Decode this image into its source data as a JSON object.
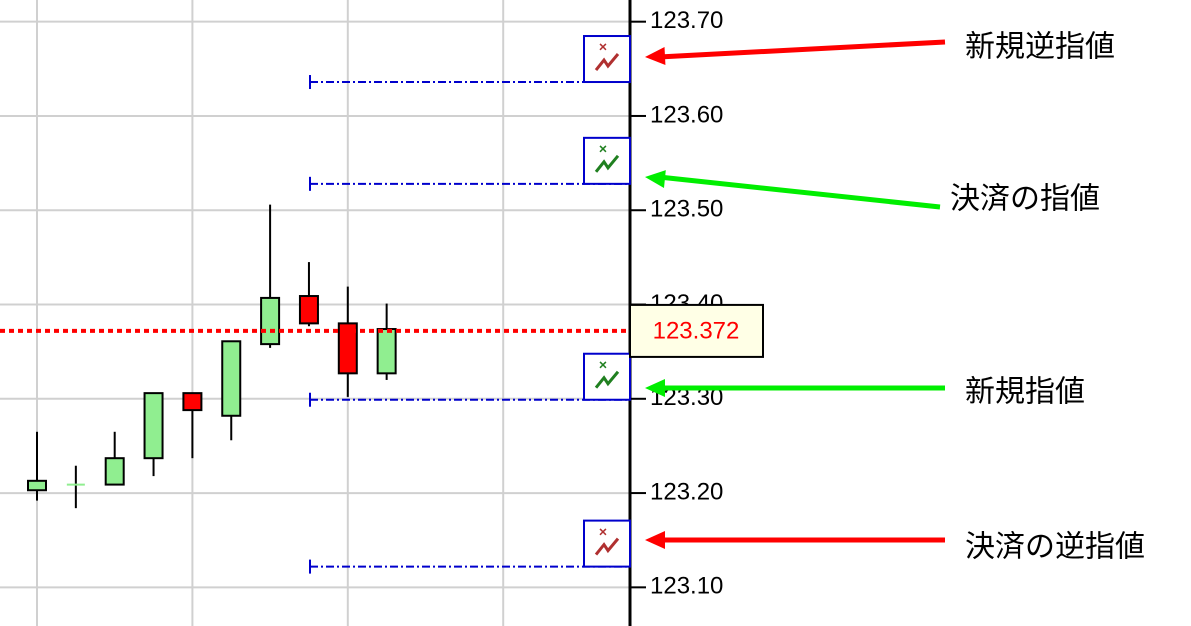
{
  "chart_data": {
    "type": "candlestick",
    "series": [
      {
        "open": [
          123.203,
          123.209,
          123.209,
          123.237,
          123.306,
          123.282,
          123.358,
          123.409,
          123.38,
          123.327
        ],
        "high": [
          123.265,
          123.229,
          123.265,
          123.306,
          123.306,
          123.361,
          123.506,
          123.445,
          123.419,
          123.401
        ],
        "low": [
          123.192,
          123.184,
          123.209,
          123.218,
          123.237,
          123.256,
          123.354,
          123.377,
          123.302,
          123.32
        ],
        "close": [
          123.213,
          123.209,
          123.237,
          123.306,
          123.288,
          123.361,
          123.407,
          123.38,
          123.327,
          123.374
        ]
      }
    ],
    "up_color": "#90ee90",
    "down_color": "#ff0000",
    "ylim": [
      123.059,
      123.723
    ],
    "yticks": [
      {
        "value": 123.1,
        "label": "123.10"
      },
      {
        "value": 123.2,
        "label": "123.20"
      },
      {
        "value": 123.3,
        "label": "123.30"
      },
      {
        "value": 123.4,
        "label": "123.40"
      },
      {
        "value": 123.5,
        "label": "123.50"
      },
      {
        "value": 123.6,
        "label": "123.60"
      },
      {
        "value": 123.7,
        "label": "123.70"
      }
    ],
    "grid": true,
    "current_price": 123.372,
    "current_price_color": "#ff0000",
    "orders": [
      {
        "label": "新規逆指値",
        "price": 123.636,
        "color": "#ff0000"
      },
      {
        "label": "決済の指値",
        "price": 123.528,
        "color": "#00ee00"
      },
      {
        "label": "新規指値",
        "price": 123.299,
        "color": "#00ee00"
      },
      {
        "label": "決済の逆指値",
        "price": 123.122,
        "color": "#ff0000"
      }
    ]
  }
}
